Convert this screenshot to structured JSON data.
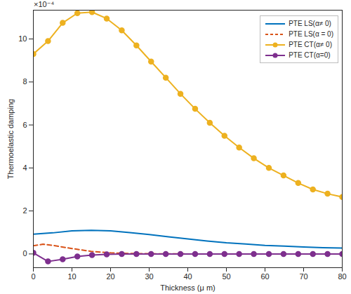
{
  "chart_data": {
    "type": "line",
    "x_label": "Thickness (μ m)",
    "y_label": "Thermoelastic damping",
    "annotations": [
      "×10⁻⁴"
    ],
    "xlim": [
      0,
      80
    ],
    "xticks": [
      0,
      10,
      20,
      30,
      40,
      50,
      60,
      70,
      80
    ],
    "ylim": [
      -0.64,
      11.34
    ],
    "yticks": [
      0,
      2,
      4,
      6,
      8,
      10
    ],
    "grid": false,
    "legend": "top-right",
    "series": [
      {
        "name": "PTE LS(α≠ 0)",
        "color": "#0072BD",
        "line_style": "solid",
        "marker": "none",
        "x": [
          0,
          5,
          10,
          15,
          20,
          25,
          30,
          35,
          40,
          45,
          50,
          55,
          60,
          65,
          70,
          75,
          80
        ],
        "values": [
          0.92,
          0.98,
          1.07,
          1.1,
          1.07,
          0.99,
          0.9,
          0.8,
          0.7,
          0.6,
          0.52,
          0.46,
          0.4,
          0.36,
          0.32,
          0.29,
          0.27
        ]
      },
      {
        "name": "PTE LS(α = 0)",
        "color": "#D95319",
        "line_style": "dashed",
        "marker": "none",
        "x": [
          0,
          2.5,
          5,
          10,
          15,
          20,
          25,
          30,
          40,
          50,
          60,
          70,
          80
        ],
        "values": [
          0.38,
          0.45,
          0.4,
          0.25,
          0.12,
          0.05,
          0.02,
          0.01,
          0,
          0,
          0,
          0,
          0
        ]
      },
      {
        "name": "PTE CT(α≠ 0)",
        "color": "#EDB120",
        "line_style": "solid",
        "marker": "circle",
        "x": [
          0,
          3.8,
          7.6,
          11.4,
          15.2,
          19,
          22.9,
          26.7,
          30.5,
          34.3,
          38.1,
          41.9,
          45.7,
          49.5,
          53.3,
          57.1,
          61,
          64.8,
          68.6,
          72.4,
          76.2,
          80
        ],
        "values": [
          9.3,
          9.9,
          10.75,
          11.2,
          11.25,
          10.95,
          10.4,
          9.7,
          8.95,
          8.2,
          7.45,
          6.75,
          6.1,
          5.5,
          4.95,
          4.45,
          4.0,
          3.65,
          3.3,
          3.0,
          2.8,
          2.65
        ]
      },
      {
        "name": "PTE CT(α=0)",
        "color": "#7E2F8E",
        "line_style": "solid",
        "marker": "circle",
        "x": [
          0,
          3.8,
          7.6,
          11.4,
          15.2,
          19,
          22.9,
          26.7,
          30.5,
          34.3,
          38.1,
          41.9,
          45.7,
          49.5,
          53.3,
          57.1,
          61,
          64.8,
          68.6,
          72.4,
          76.2,
          80
        ],
        "values": [
          0.05,
          -0.35,
          -0.25,
          -0.12,
          -0.05,
          -0.02,
          0,
          0,
          0,
          0,
          0,
          0,
          0,
          0,
          0,
          0,
          0,
          0,
          0,
          0,
          0,
          0
        ]
      }
    ]
  }
}
